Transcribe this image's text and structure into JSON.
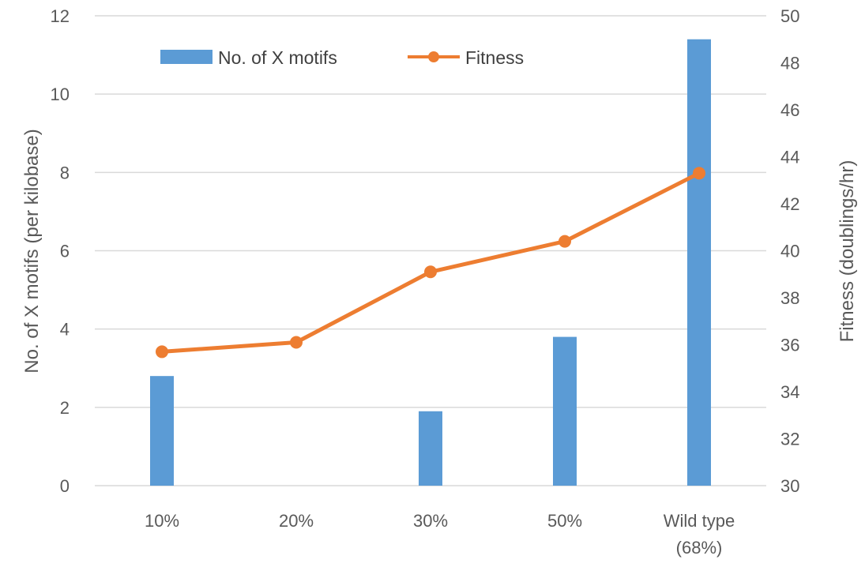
{
  "chart_data": {
    "type": "bar",
    "categories": [
      [
        "10%"
      ],
      [
        "20%"
      ],
      [
        "30%"
      ],
      [
        "50%"
      ],
      [
        "Wild type",
        "(68%)"
      ]
    ],
    "series": [
      {
        "name": "No. of X motifs",
        "type": "bar",
        "axis": "left",
        "color": "#5B9BD5",
        "values": [
          2.8,
          0,
          1.9,
          3.8,
          11.4
        ]
      },
      {
        "name": "Fitness",
        "type": "line",
        "axis": "right",
        "color": "#ED7D31",
        "values": [
          35.7,
          36.1,
          39.1,
          40.4,
          43.3
        ]
      }
    ],
    "ylabel": "No. of X motifs (per kilobase)",
    "ylabel_right": "Fitness (doublings/hr)",
    "ylim": [
      0,
      12
    ],
    "ylim_right": [
      30,
      50
    ],
    "yticks": [
      "0",
      "2",
      "4",
      "6",
      "8",
      "10",
      "12"
    ],
    "yticks_right": [
      "30",
      "32",
      "34",
      "36",
      "38",
      "40",
      "42",
      "44",
      "46",
      "48",
      "50"
    ],
    "grid": true,
    "legend": "top-left"
  }
}
